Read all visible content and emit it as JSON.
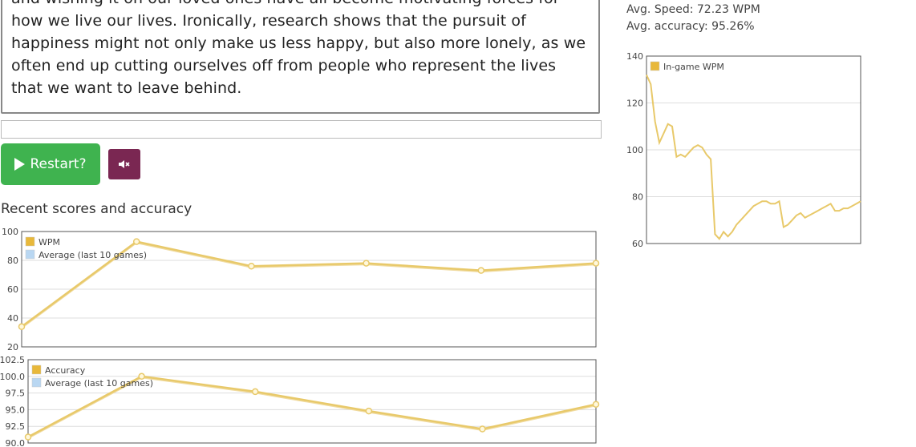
{
  "passage": {
    "text": "and wishing it on our loved ones have all become motivating forces for how we live our lives. Ironically, research shows that the pursuit of happiness might not only make us less happy, but also more lonely, as we often end up cutting ourselves off from people who represent the lives that we want to leave behind."
  },
  "input": {
    "value": ""
  },
  "controls": {
    "restart_label": "Restart?",
    "play_icon": "play-icon",
    "mute_icon": "speaker-muted-icon"
  },
  "stats": {
    "speed": "Avg. Speed: 72.23 WPM",
    "accuracy": "Avg. accuracy: 95.26%"
  },
  "section": {
    "title": "Recent scores and accuracy"
  },
  "colors": {
    "line": "#e8c96a",
    "marker_fill": "#fff8dc",
    "legend_primary": "#e8b83a",
    "legend_secondary": "#b9d7f2",
    "grid": "#dddddd",
    "restart": "#3fb34f",
    "mute": "#7a2752"
  },
  "chart_data": [
    {
      "id": "wpm",
      "type": "line",
      "x": [
        1,
        2,
        3,
        4,
        5,
        6
      ],
      "series": [
        {
          "name": "WPM",
          "values": [
            34,
            93,
            76,
            78,
            73,
            78
          ]
        },
        {
          "name": "Average (last 10 games)",
          "values": [
            34,
            93,
            76,
            78,
            73,
            78
          ]
        }
      ],
      "yticks": [
        "100",
        "80",
        "60",
        "40",
        "20"
      ],
      "ylim": [
        20,
        100
      ],
      "grid": true,
      "legend": "top-left"
    },
    {
      "id": "accuracy",
      "type": "line",
      "x": [
        1,
        2,
        3,
        4,
        5,
        6
      ],
      "series": [
        {
          "name": "Accuracy",
          "values": [
            90.9,
            100.0,
            97.7,
            94.8,
            92.1,
            95.8
          ]
        },
        {
          "name": "Average (last 10 games)",
          "values": [
            90.9,
            100.0,
            97.7,
            94.8,
            92.1,
            95.8
          ]
        }
      ],
      "yticks": [
        "102.5",
        "100.0",
        "97.5",
        "95.0",
        "92.5",
        "90.0"
      ],
      "ylim": [
        90,
        102.5
      ],
      "grid": true,
      "legend": "top-left"
    },
    {
      "id": "ingame",
      "type": "line",
      "series": [
        {
          "name": "In-game WPM",
          "values": [
            132,
            128,
            112,
            103,
            107,
            111,
            110,
            97,
            98,
            97,
            99,
            101,
            102,
            101,
            98,
            96,
            64,
            62,
            65,
            63,
            65,
            68,
            70,
            72,
            74,
            76,
            77,
            78,
            78,
            77,
            77,
            78,
            67,
            68,
            70,
            72,
            73,
            71,
            72,
            73,
            74,
            75,
            76,
            77,
            74,
            74,
            75,
            75,
            76,
            77,
            78
          ]
        }
      ],
      "yticks": [
        "140",
        "120",
        "100",
        "80",
        "60"
      ],
      "ylim": [
        60,
        140
      ],
      "grid": true,
      "legend": "top-left"
    }
  ]
}
